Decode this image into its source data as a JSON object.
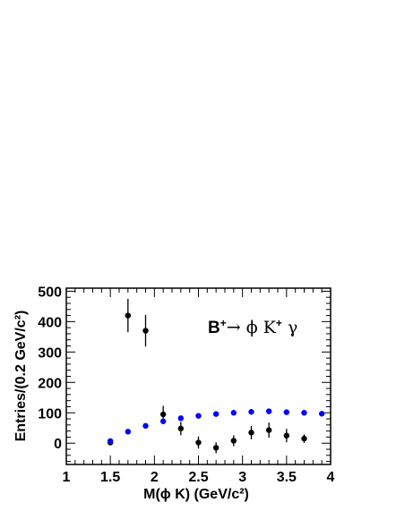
{
  "chart_data": {
    "type": "scatter",
    "title": "",
    "annotation": {
      "parts": [
        "B",
        "+",
        "→ ϕ K",
        "+",
        " γ"
      ]
    },
    "xlabel": "M(ϕ K) (GeV/c²)",
    "ylabel": "Entries/(0.2 GeV/c²)",
    "xlim": [
      1,
      4
    ],
    "ylim": [
      -70,
      510
    ],
    "xticks": [
      "1",
      "1.5",
      "2",
      "2.5",
      "3",
      "3.5",
      "4"
    ],
    "yticks": [
      "0",
      "100",
      "200",
      "300",
      "400",
      "500"
    ],
    "grid": false,
    "series": [
      {
        "marker_color": "#000000",
        "x": [
          1.5,
          1.7,
          1.9,
          2.1,
          2.3,
          2.5,
          2.7,
          2.9,
          3.1,
          3.3,
          3.5,
          3.7
        ],
        "y": [
          2,
          420,
          370,
          95,
          48,
          2,
          -15,
          8,
          35,
          43,
          25,
          15
        ],
        "yerr": [
          8,
          55,
          52,
          28,
          22,
          20,
          18,
          18,
          22,
          25,
          22,
          14
        ]
      },
      {
        "marker_color": "#0000ff",
        "x": [
          1.5,
          1.7,
          1.9,
          2.1,
          2.3,
          2.5,
          2.7,
          2.9,
          3.1,
          3.3,
          3.5,
          3.7,
          3.9
        ],
        "y": [
          7,
          38,
          57,
          72,
          82,
          90,
          96,
          100,
          103,
          105,
          102,
          100,
          97
        ]
      }
    ]
  }
}
